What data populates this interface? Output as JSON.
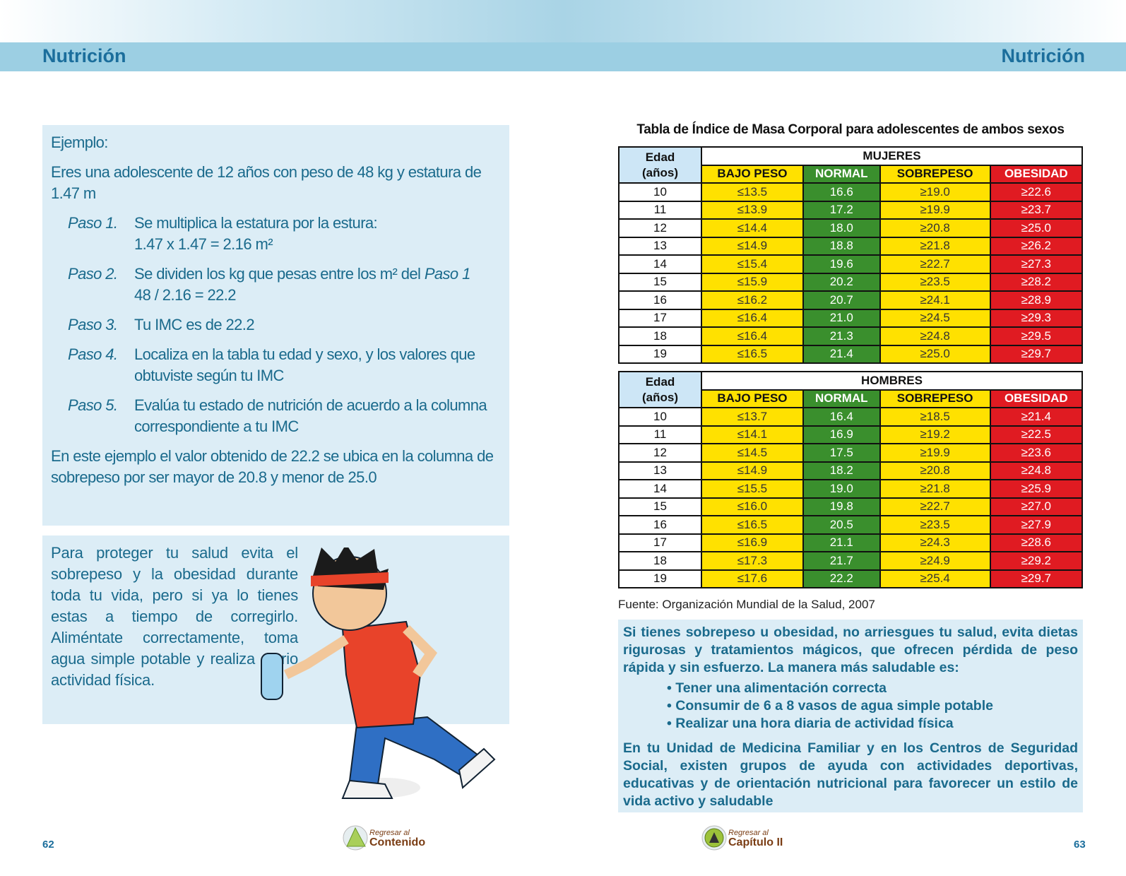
{
  "header": {
    "left_title": "Nutrición",
    "right_title": "Nutrición"
  },
  "example": {
    "heading": "Ejemplo:",
    "intro": "Eres una adolescente de 12 años con peso de 48 kg y estatura de 1.47 m",
    "steps": [
      {
        "label": "Paso 1.",
        "text": "Se multiplica la estatura por la estura:",
        "line2": "1.47 x 1.47 = 2.16 m²"
      },
      {
        "label": "Paso 2.",
        "text": "Se dividen los kg que pesas entre los m² del",
        "text_italic": "Paso 1",
        "line2": "48 / 2.16 = 22.2"
      },
      {
        "label": "Paso 3.",
        "text": "Tu IMC es de 22.2"
      },
      {
        "label": "Paso 4.",
        "text": "Localiza en la tabla tu edad y sexo, y los valores que obtuviste según tu IMC"
      },
      {
        "label": "Paso 5.",
        "text": "Evalúa tu estado de nutrición de acuerdo a la columna correspondiente a tu IMC"
      }
    ],
    "conclusion": "En este ejemplo el valor obtenido de 22.2 se ubica en la columna de sobrepeso por ser mayor de 20.8 y menor de 25.0"
  },
  "tip": "Para proteger tu salud evita el sobrepeso y la obesidad durante toda tu vida, pero si ya lo tienes estas a tiempo de corregirlo. Aliméntate correctamente, toma agua simple potable y realiza diario actividad física.",
  "table_title": "Tabla de Índice de Masa Corporal para adolescentes de ambos sexos",
  "columns": {
    "edad": "Edad",
    "anos": "(años)",
    "bajo": "BAJO PESO",
    "normal": "NORMAL",
    "sobre": "SOBREPESO",
    "obes": "OBESIDAD"
  },
  "colors": {
    "yellow": "#ffe100",
    "green": "#3a8f2d",
    "red": "#e01b22",
    "header_blue": "#cde6f6",
    "text_blue": "#1a6a8c"
  },
  "tables": [
    {
      "group": "MUJERES",
      "rows": [
        [
          "10",
          "≤13.5",
          "16.6",
          "≥19.0",
          "≥22.6"
        ],
        [
          "11",
          "≤13.9",
          "17.2",
          "≥19.9",
          "≥23.7"
        ],
        [
          "12",
          "≤14.4",
          "18.0",
          "≥20.8",
          "≥25.0"
        ],
        [
          "13",
          "≤14.9",
          "18.8",
          "≥21.8",
          "≥26.2"
        ],
        [
          "14",
          "≤15.4",
          "19.6",
          "≥22.7",
          "≥27.3"
        ],
        [
          "15",
          "≤15.9",
          "20.2",
          "≥23.5",
          "≥28.2"
        ],
        [
          "16",
          "≤16.2",
          "20.7",
          "≥24.1",
          "≥28.9"
        ],
        [
          "17",
          "≤16.4",
          "21.0",
          "≥24.5",
          "≥29.3"
        ],
        [
          "18",
          "≤16.4",
          "21.3",
          "≥24.8",
          "≥29.5"
        ],
        [
          "19",
          "≤16.5",
          "21.4",
          "≥25.0",
          "≥29.7"
        ]
      ]
    },
    {
      "group": "HOMBRES",
      "rows": [
        [
          "10",
          "≤13.7",
          "16.4",
          "≥18.5",
          "≥21.4"
        ],
        [
          "11",
          "≤14.1",
          "16.9",
          "≥19.2",
          "≥22.5"
        ],
        [
          "12",
          "≤14.5",
          "17.5",
          "≥19.9",
          "≥23.6"
        ],
        [
          "13",
          "≤14.9",
          "18.2",
          "≥20.8",
          "≥24.8"
        ],
        [
          "14",
          "≤15.5",
          "19.0",
          "≥21.8",
          "≥25.9"
        ],
        [
          "15",
          "≤16.0",
          "19.8",
          "≥22.7",
          "≥27.0"
        ],
        [
          "16",
          "≤16.5",
          "20.5",
          "≥23.5",
          "≥27.9"
        ],
        [
          "17",
          "≤16.9",
          "21.1",
          "≥24.3",
          "≥28.6"
        ],
        [
          "18",
          "≤17.3",
          "21.7",
          "≥24.9",
          "≥29.2"
        ],
        [
          "19",
          "≤17.6",
          "22.2",
          "≥25.4",
          "≥29.7"
        ]
      ]
    }
  ],
  "source": "Fuente: Organización Mundial de la Salud, 2007",
  "info": {
    "intro": "Si tienes sobrepeso u obesidad, no arriesgues tu salud, evita dietas rigurosas y tratamientos mágicos, que ofrecen pérdida de peso rápida y sin esfuerzo. La manera más saludable es:",
    "bullets": [
      "• Tener una alimentación correcta",
      "• Consumir de 6 a 8 vasos de agua simple potable",
      "• Realizar una hora diaria de actividad física"
    ],
    "closing": "En tu Unidad de Medicina Familiar y en los Centros de Seguridad Social, existen grupos de ayuda con actividades deportivas, educativas y de orientación nutricional para favorecer un estilo de vida activo y saludable"
  },
  "footer": {
    "page_left": "62",
    "page_right": "63",
    "nav_contenido": {
      "small": "Regresar al",
      "big": "Contenido"
    },
    "nav_capitulo": {
      "small": "Regresar al",
      "big": "Capítulo II"
    }
  }
}
